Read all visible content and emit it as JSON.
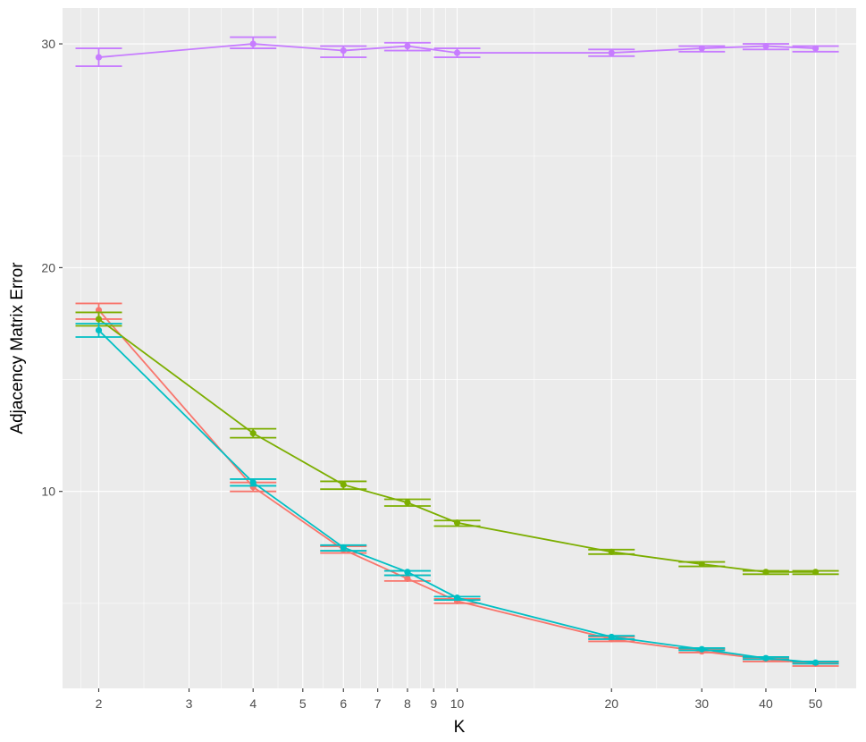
{
  "chart_data": {
    "type": "line",
    "title": "",
    "xlabel": "K",
    "ylabel": "Adjacency Matrix Error",
    "x_scale": "log",
    "grid": true,
    "legend": "none",
    "xlim": [
      1.7,
      60
    ],
    "ylim": [
      1.2,
      31.6
    ],
    "x_major_ticks": [
      2,
      3,
      4,
      5,
      6,
      7,
      8,
      9,
      10,
      20,
      30,
      40,
      50
    ],
    "x_tick_labels": [
      "2",
      "3",
      "4",
      "5",
      "6",
      "7",
      "8",
      "9",
      "10",
      "20",
      "30",
      "40",
      "50"
    ],
    "y_major_ticks": [
      10,
      20,
      30
    ],
    "y_tick_labels": [
      "10",
      "20",
      "30"
    ],
    "background_color": "#EBEBEB",
    "series": [
      {
        "color": "#F8766D",
        "points": [
          {
            "x": 2,
            "y": 18.1,
            "ymin": 17.7,
            "ymax": 18.4
          },
          {
            "x": 4,
            "y": 10.2,
            "ymin": 10.0,
            "ymax": 10.4
          },
          {
            "x": 6,
            "y": 7.4,
            "ymin": 7.25,
            "ymax": 7.55
          },
          {
            "x": 8,
            "y": 6.1,
            "ymin": 6.0,
            "ymax": 6.25
          },
          {
            "x": 10,
            "y": 5.1,
            "ymin": 5.0,
            "ymax": 5.2
          },
          {
            "x": 20,
            "y": 3.4,
            "ymin": 3.3,
            "ymax": 3.5
          },
          {
            "x": 30,
            "y": 2.85,
            "ymin": 2.8,
            "ymax": 2.95
          },
          {
            "x": 40,
            "y": 2.5,
            "ymin": 2.4,
            "ymax": 2.55
          },
          {
            "x": 50,
            "y": 2.3,
            "ymin": 2.2,
            "ymax": 2.35
          }
        ]
      },
      {
        "color": "#7CAE00",
        "points": [
          {
            "x": 2,
            "y": 17.7,
            "ymin": 17.4,
            "ymax": 18.0
          },
          {
            "x": 4,
            "y": 12.6,
            "ymin": 12.4,
            "ymax": 12.8
          },
          {
            "x": 6,
            "y": 10.3,
            "ymin": 10.1,
            "ymax": 10.45
          },
          {
            "x": 8,
            "y": 9.5,
            "ymin": 9.35,
            "ymax": 9.65
          },
          {
            "x": 10,
            "y": 8.6,
            "ymin": 8.45,
            "ymax": 8.7
          },
          {
            "x": 20,
            "y": 7.3,
            "ymin": 7.2,
            "ymax": 7.4
          },
          {
            "x": 30,
            "y": 6.75,
            "ymin": 6.65,
            "ymax": 6.85
          },
          {
            "x": 40,
            "y": 6.4,
            "ymin": 6.3,
            "ymax": 6.45
          },
          {
            "x": 50,
            "y": 6.4,
            "ymin": 6.3,
            "ymax": 6.45
          }
        ]
      },
      {
        "color": "#00BFC4",
        "points": [
          {
            "x": 2,
            "y": 17.2,
            "ymin": 16.9,
            "ymax": 17.5
          },
          {
            "x": 4,
            "y": 10.4,
            "ymin": 10.25,
            "ymax": 10.55
          },
          {
            "x": 6,
            "y": 7.5,
            "ymin": 7.35,
            "ymax": 7.6
          },
          {
            "x": 8,
            "y": 6.4,
            "ymin": 6.25,
            "ymax": 6.45
          },
          {
            "x": 10,
            "y": 5.25,
            "ymin": 5.15,
            "ymax": 5.3
          },
          {
            "x": 20,
            "y": 3.5,
            "ymin": 3.4,
            "ymax": 3.55
          },
          {
            "x": 30,
            "y": 2.95,
            "ymin": 2.9,
            "ymax": 3.0
          },
          {
            "x": 40,
            "y": 2.55,
            "ymin": 2.5,
            "ymax": 2.6
          },
          {
            "x": 50,
            "y": 2.35,
            "ymin": 2.3,
            "ymax": 2.4
          }
        ]
      },
      {
        "color": "#C77CFF",
        "points": [
          {
            "x": 2,
            "y": 29.4,
            "ymin": 29.0,
            "ymax": 29.8
          },
          {
            "x": 4,
            "y": 30.0,
            "ymin": 29.8,
            "ymax": 30.3
          },
          {
            "x": 6,
            "y": 29.7,
            "ymin": 29.4,
            "ymax": 29.9
          },
          {
            "x": 8,
            "y": 29.9,
            "ymin": 29.7,
            "ymax": 30.05
          },
          {
            "x": 10,
            "y": 29.6,
            "ymin": 29.4,
            "ymax": 29.8
          },
          {
            "x": 20,
            "y": 29.6,
            "ymin": 29.45,
            "ymax": 29.75
          },
          {
            "x": 30,
            "y": 29.8,
            "ymin": 29.65,
            "ymax": 29.9
          },
          {
            "x": 40,
            "y": 29.9,
            "ymin": 29.75,
            "ymax": 30.0
          },
          {
            "x": 50,
            "y": 29.8,
            "ymin": 29.65,
            "ymax": 29.9
          }
        ]
      }
    ]
  }
}
